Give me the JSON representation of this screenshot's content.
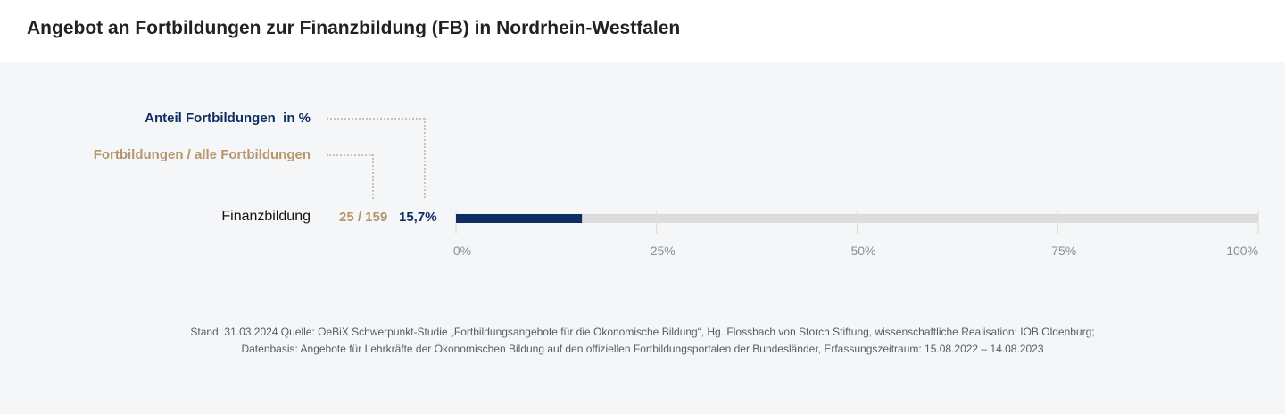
{
  "title": "Angebot an Fortbildungen zur Finanzbildung (FB) in Nordrhein-Westfalen",
  "legend": {
    "percent_label": "Anteil Fortbildungen  in %",
    "count_label": "Fortbildungen / alle Fortbildungen"
  },
  "colors": {
    "accent_blue": "#102d61",
    "accent_gold": "#b5956a",
    "track": "#dcdcdc",
    "background": "#f5f6f8"
  },
  "chart_data": {
    "type": "bar",
    "orientation": "horizontal",
    "categories": [
      "Finanzbildung"
    ],
    "values": [
      15.7
    ],
    "value_labels": [
      "15,7%"
    ],
    "count_labels": [
      "25 / 159"
    ],
    "xlim": [
      0,
      100
    ],
    "xticks": [
      0,
      25,
      50,
      75,
      100
    ],
    "xtick_labels": [
      "0%",
      "25%",
      "50%",
      "75%",
      "100%"
    ],
    "grid": true
  },
  "footnote": {
    "line1": "Stand: 31.03.2024 Quelle: OeBiX Schwerpunkt-Studie „Fortbildungsangebote für die Ökonomische Bildung“, Hg. Flossbach von Storch Stiftung, wissenschaftliche Realisation: IÖB Oldenburg;",
    "line2": "Datenbasis: Angebote für Lehrkräfte der Ökonomischen Bildung auf den offiziellen Fortbildungsportalen der Bundesländer, Erfassungszeitraum: 15.08.2022 – 14.08.2023"
  }
}
